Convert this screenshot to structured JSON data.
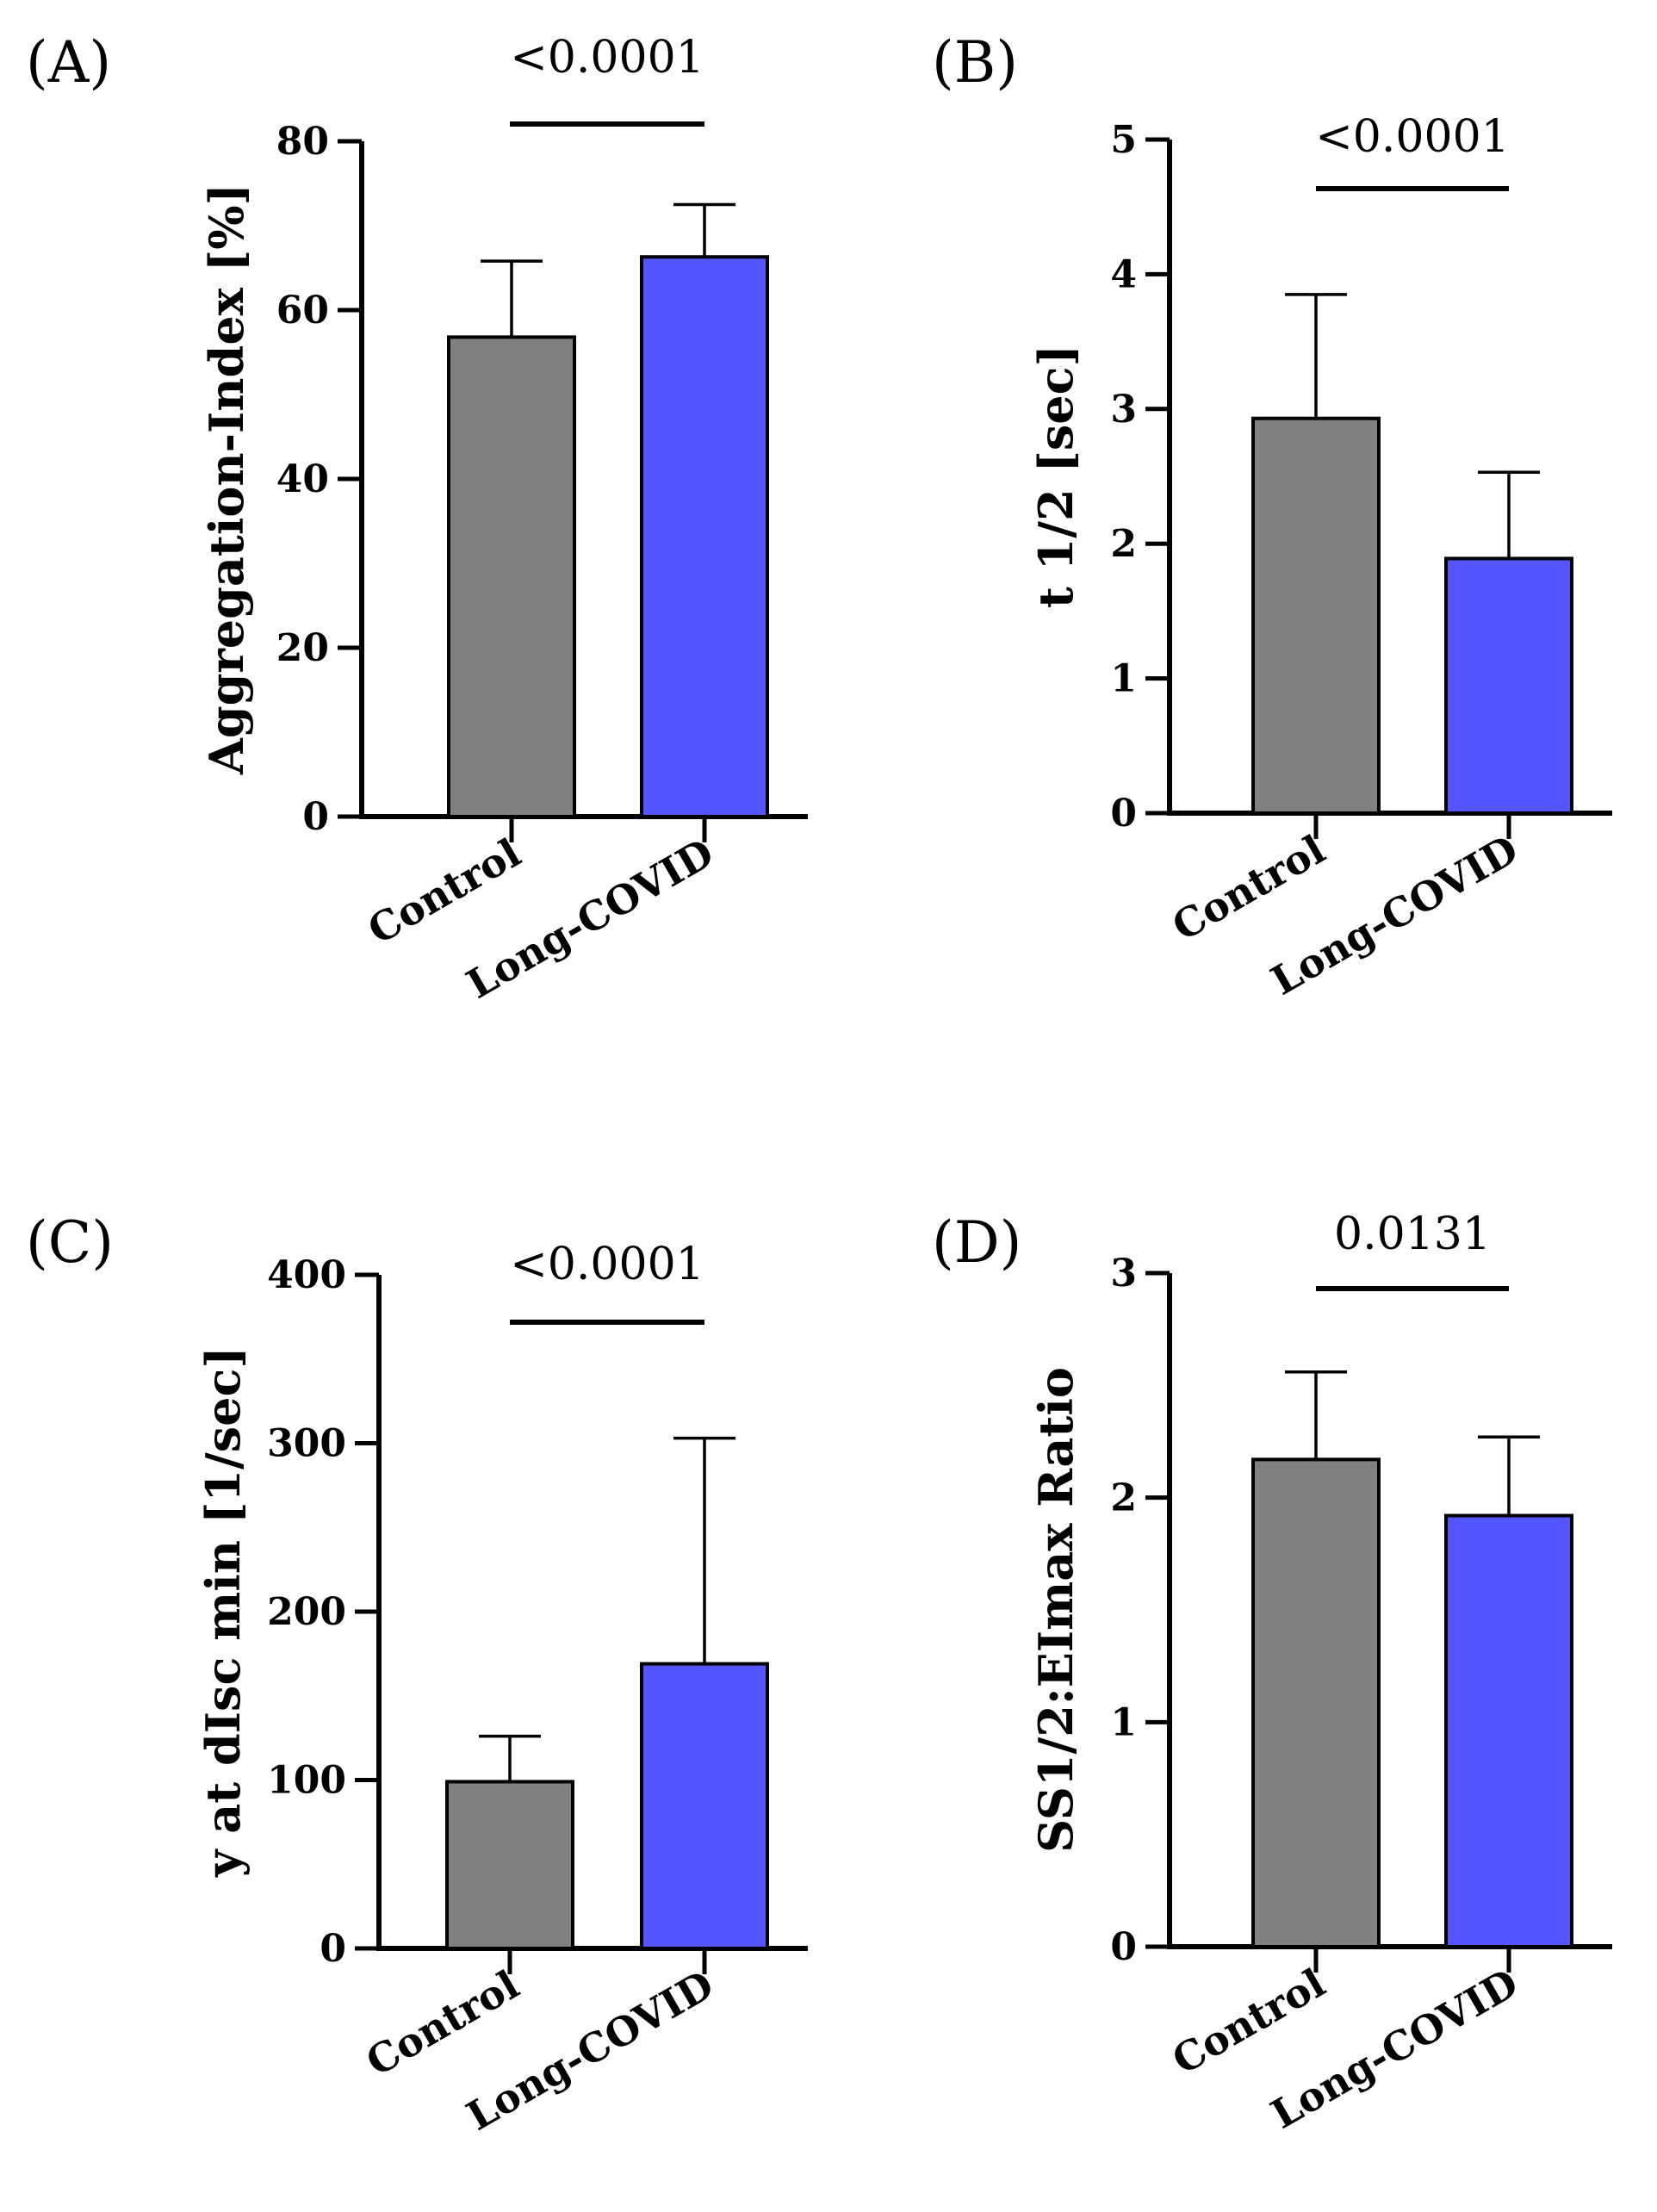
{
  "chart_data": [
    {
      "type": "bar",
      "panel": "(A)",
      "categories": [
        "Control",
        "Long-COVID"
      ],
      "values": [
        56.8,
        66.3
      ],
      "errors": [
        9.0,
        6.2
      ],
      "ylabel": "Aggregation-Index [%]",
      "yticks": [
        0,
        20,
        40,
        60,
        80
      ],
      "ylim": [
        0,
        80
      ],
      "pvalue": "<0.0001",
      "colors": [
        "#808080",
        "#5555ff"
      ]
    },
    {
      "type": "bar",
      "panel": "(B)",
      "categories": [
        "Control",
        "Long-COVID"
      ],
      "values": [
        2.93,
        1.89
      ],
      "errors": [
        0.92,
        0.64
      ],
      "ylabel": "t 1/2 [sec]",
      "yticks": [
        0,
        1,
        2,
        3,
        4,
        5
      ],
      "ylim": [
        0,
        5
      ],
      "pvalue": "<0.0001",
      "colors": [
        "#808080",
        "#5555ff"
      ]
    },
    {
      "type": "bar",
      "panel": "(C)",
      "categories": [
        "Control",
        "Long-COVID"
      ],
      "values": [
        99,
        169
      ],
      "errors": [
        27,
        134
      ],
      "ylabel": "y at dIsc min [1/sec]",
      "yticks": [
        0,
        100,
        200,
        300,
        400
      ],
      "ylim": [
        0,
        400
      ],
      "pvalue": "<0.0001",
      "colors": [
        "#808080",
        "#5555ff"
      ]
    },
    {
      "type": "bar",
      "panel": "(D)",
      "categories": [
        "Control",
        "Long-COVID"
      ],
      "values": [
        2.17,
        1.92
      ],
      "errors": [
        0.39,
        0.35
      ],
      "ylabel": "SS1/2:EImax Ratio",
      "yticks": [
        0,
        1,
        2,
        3
      ],
      "ylim": [
        0,
        3
      ],
      "pvalue": "0.0131",
      "colors": [
        "#808080",
        "#5555ff"
      ]
    }
  ]
}
